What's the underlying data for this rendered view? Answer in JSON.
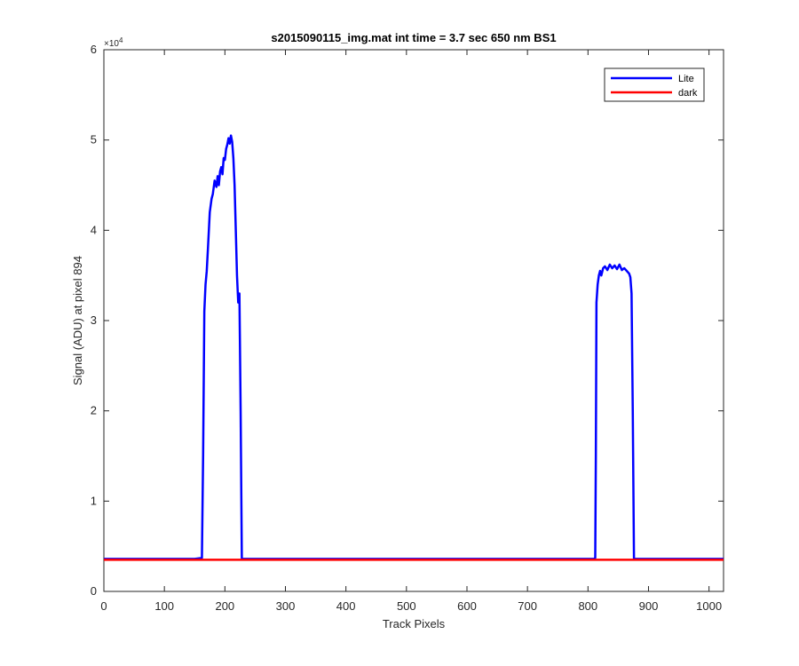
{
  "chart_data": {
    "type": "line",
    "title": "s2015090115_img.mat int time = 3.7 sec  650 nm BS1",
    "xlabel": "Track Pixels",
    "ylabel": "Signal (ADU) at pixel 894",
    "xlim": [
      0,
      1024
    ],
    "ylim": [
      0,
      60000
    ],
    "x_ticks": [
      "0",
      "100",
      "200",
      "300",
      "400",
      "500",
      "600",
      "700",
      "800",
      "900",
      "1000"
    ],
    "y_ticks": [
      "0",
      "1",
      "2",
      "3",
      "4",
      "5",
      "6"
    ],
    "y_exponent_label": "×10",
    "y_exponent_power": "4",
    "grid": false,
    "legend_position": "top-right",
    "series": [
      {
        "name": "Lite",
        "color": "#0000ff",
        "x": [
          0,
          150,
          162,
          164,
          166,
          168,
          170,
          172,
          175,
          178,
          180,
          183,
          186,
          188,
          190,
          192,
          194,
          196,
          198,
          200,
          202,
          204,
          206,
          208,
          210,
          212,
          214,
          216,
          218,
          220,
          222,
          224,
          226,
          228,
          230,
          240,
          400,
          600,
          800,
          810,
          812,
          813,
          814,
          816,
          818,
          820,
          822,
          825,
          828,
          832,
          836,
          840,
          844,
          848,
          852,
          856,
          860,
          864,
          868,
          870,
          872,
          874,
          876,
          878,
          880,
          900,
          1024
        ],
        "y": [
          3600,
          3600,
          3700,
          15000,
          31000,
          34000,
          35500,
          38000,
          42000,
          43500,
          44000,
          45500,
          44800,
          46000,
          45000,
          46500,
          47000,
          46200,
          48000,
          47800,
          49000,
          49500,
          50200,
          49600,
          50500,
          49800,
          48000,
          45000,
          40000,
          35000,
          32000,
          33000,
          20000,
          3600,
          3600,
          3600,
          3600,
          3600,
          3600,
          3600,
          3700,
          15000,
          32000,
          34000,
          35000,
          35500,
          35000,
          35800,
          36000,
          35600,
          36200,
          35800,
          36100,
          35700,
          36200,
          35600,
          35800,
          35500,
          35200,
          34800,
          33000,
          20000,
          3600,
          3600,
          3600,
          3600,
          3600
        ]
      },
      {
        "name": "dark",
        "color": "#ff0000",
        "x": [
          0,
          1024
        ],
        "y": [
          3500,
          3500
        ]
      }
    ]
  }
}
